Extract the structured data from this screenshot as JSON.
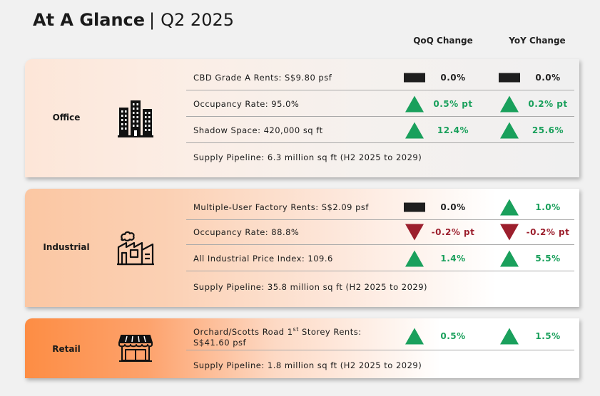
{
  "header": {
    "title_bold": "At A Glance",
    "separator": "|",
    "period": "Q2 2025",
    "qoq_label": "QoQ Change",
    "yoy_label": "YoY Change"
  },
  "colors": {
    "up": "#1aa05c",
    "down": "#9c1f2d",
    "flat": "#1e1e1e"
  },
  "office": {
    "label": "Office",
    "icon": "office-buildings-icon",
    "rows": [
      {
        "metric": "CBD Grade A Rents: S$9.80 psf",
        "qoq": {
          "dir": "flat",
          "value": "0.0%"
        },
        "yoy": {
          "dir": "flat",
          "value": "0.0%"
        }
      },
      {
        "metric": "Occupancy Rate: 95.0%",
        "qoq": {
          "dir": "up",
          "value": "0.5% pt"
        },
        "yoy": {
          "dir": "up",
          "value": "0.2% pt"
        }
      },
      {
        "metric": "Shadow Space: 420,000 sq ft",
        "qoq": {
          "dir": "up",
          "value": "12.4%"
        },
        "yoy": {
          "dir": "up",
          "value": "25.6%"
        }
      }
    ],
    "pipeline": "Supply Pipeline: 6.3 million sq ft (H2 2025 to 2029)"
  },
  "industrial": {
    "label": "Industrial",
    "icon": "factory-icon",
    "rows": [
      {
        "metric": "Multiple-User Factory Rents: S$2.09 psf",
        "qoq": {
          "dir": "flat",
          "value": "0.0%"
        },
        "yoy": {
          "dir": "up",
          "value": "1.0%"
        }
      },
      {
        "metric": "Occupancy Rate: 88.8%",
        "qoq": {
          "dir": "down",
          "value": "-0.2% pt"
        },
        "yoy": {
          "dir": "down",
          "value": "-0.2% pt"
        }
      },
      {
        "metric": "All Industrial Price Index: 109.6",
        "qoq": {
          "dir": "up",
          "value": "1.4%"
        },
        "yoy": {
          "dir": "up",
          "value": "5.5%"
        }
      }
    ],
    "pipeline": "Supply Pipeline: 35.8 million sq ft (H2 2025 to 2029)"
  },
  "retail": {
    "label": "Retail",
    "icon": "storefront-icon",
    "rows": [
      {
        "metric_line1": "Orchard/Scotts Road 1",
        "metric_sup": "st",
        "metric_line1b": " Storey Rents:",
        "metric_line2": "S$41.60 psf",
        "qoq": {
          "dir": "up",
          "value": "0.5%"
        },
        "yoy": {
          "dir": "up",
          "value": "1.5%"
        }
      }
    ],
    "pipeline": "Supply Pipeline: 1.8 million sq ft (H2 2025 to 2029)"
  }
}
